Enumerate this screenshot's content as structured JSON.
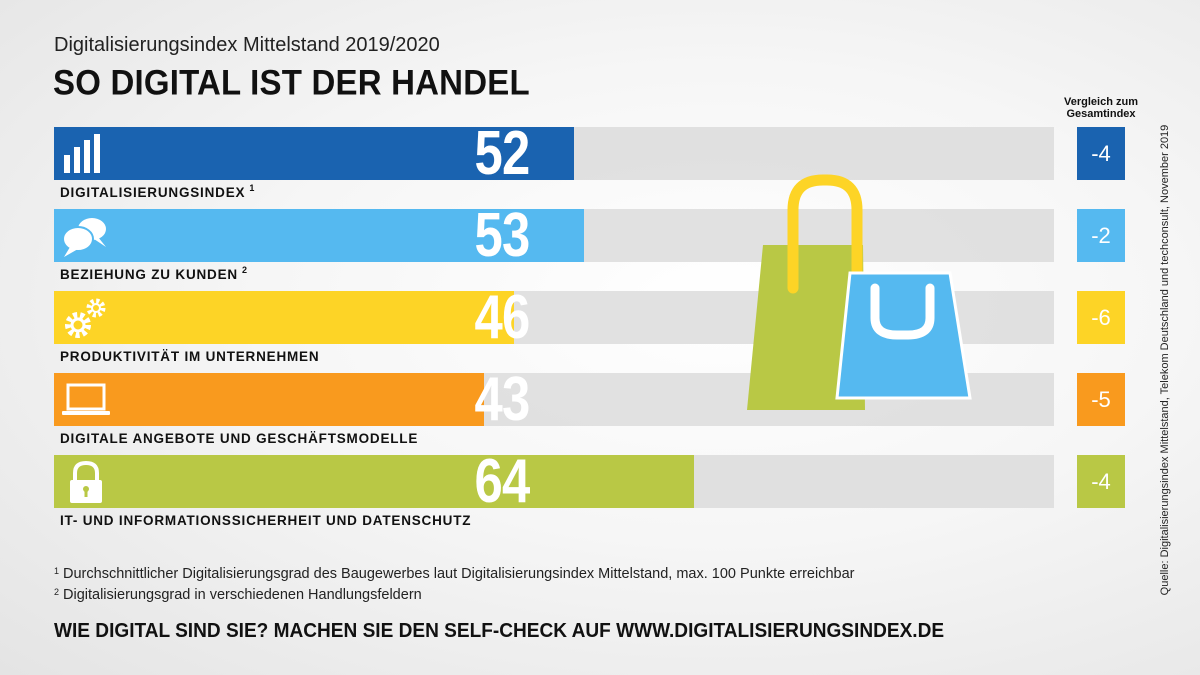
{
  "header": {
    "subtitle": "Digitalisierungsindex Mittelstand 2019/2020",
    "title": "SO DIGITAL IST DER HANDEL"
  },
  "comparison_header": "Vergleich zum Gesamtindex",
  "chart_data": {
    "type": "bar",
    "orientation": "horizontal",
    "xlim": [
      0,
      100
    ],
    "categories": [
      "DIGITALISIERUNGSINDEX",
      "BEZIEHUNG ZU KUNDEN",
      "PRODUKTIVITÄT IM UNTERNEHMEN",
      "DIGITALE ANGEBOTE UND GESCHÄFTSMODELLE",
      "IT- UND INFORMATIONSSICHERHEIT UND DATENSCHUTZ"
    ],
    "footnote_marks": [
      "1",
      "2",
      "",
      "",
      ""
    ],
    "values": [
      52,
      53,
      46,
      43,
      64
    ],
    "comparison": [
      "-4",
      "-2",
      "-6",
      "-5",
      "-4"
    ],
    "colors": [
      "#1a63b0",
      "#55b9f0",
      "#fdd426",
      "#f99a1e",
      "#b9c845"
    ],
    "icons": [
      "bar-chart-icon",
      "speech-bubbles-icon",
      "gears-icon",
      "laptop-icon",
      "padlock-icon"
    ]
  },
  "footnotes": [
    {
      "mark": "1",
      "text": "Durchschnittlicher Digitalisierungsgrad des Baugewerbes laut Digitalisierungsindex Mittelstand, max. 100 Punkte erreichbar"
    },
    {
      "mark": "2",
      "text": "Digitalisierungsgrad in verschiedenen Handlungsfeldern"
    }
  ],
  "cta": "WIE DIGITAL SIND SIE? MACHEN SIE DEN SELF-CHECK AUF WWW.DIGITALISIERUNGSINDEX.DE",
  "source": "Quelle: Digitalisierungsindex Mittelstand, Telekom Deutschland und techconsult, November 2019",
  "illustration": "shopping-bags-icon"
}
